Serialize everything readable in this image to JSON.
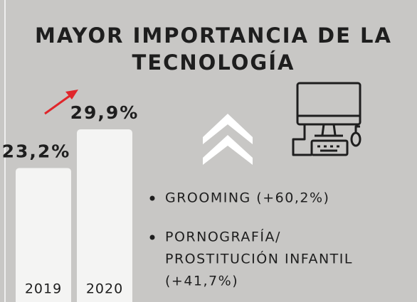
{
  "chart_data": {
    "type": "bar",
    "title": [
      "MAYOR IMPORTANCIA DE LA",
      "TECNOLOGÍA"
    ],
    "categories": [
      "2019",
      "2020"
    ],
    "values": [
      23.2,
      29.9
    ],
    "value_labels": [
      "23,2%",
      "29,9%"
    ],
    "color": "#f4f4f3",
    "annotations": [
      [
        "GROOMING (+60,2%)"
      ],
      [
        "PORNOGRAFÍA/",
        "PROSTITUCIÓN INFANTIL",
        "(+41,7%)"
      ]
    ]
  }
}
